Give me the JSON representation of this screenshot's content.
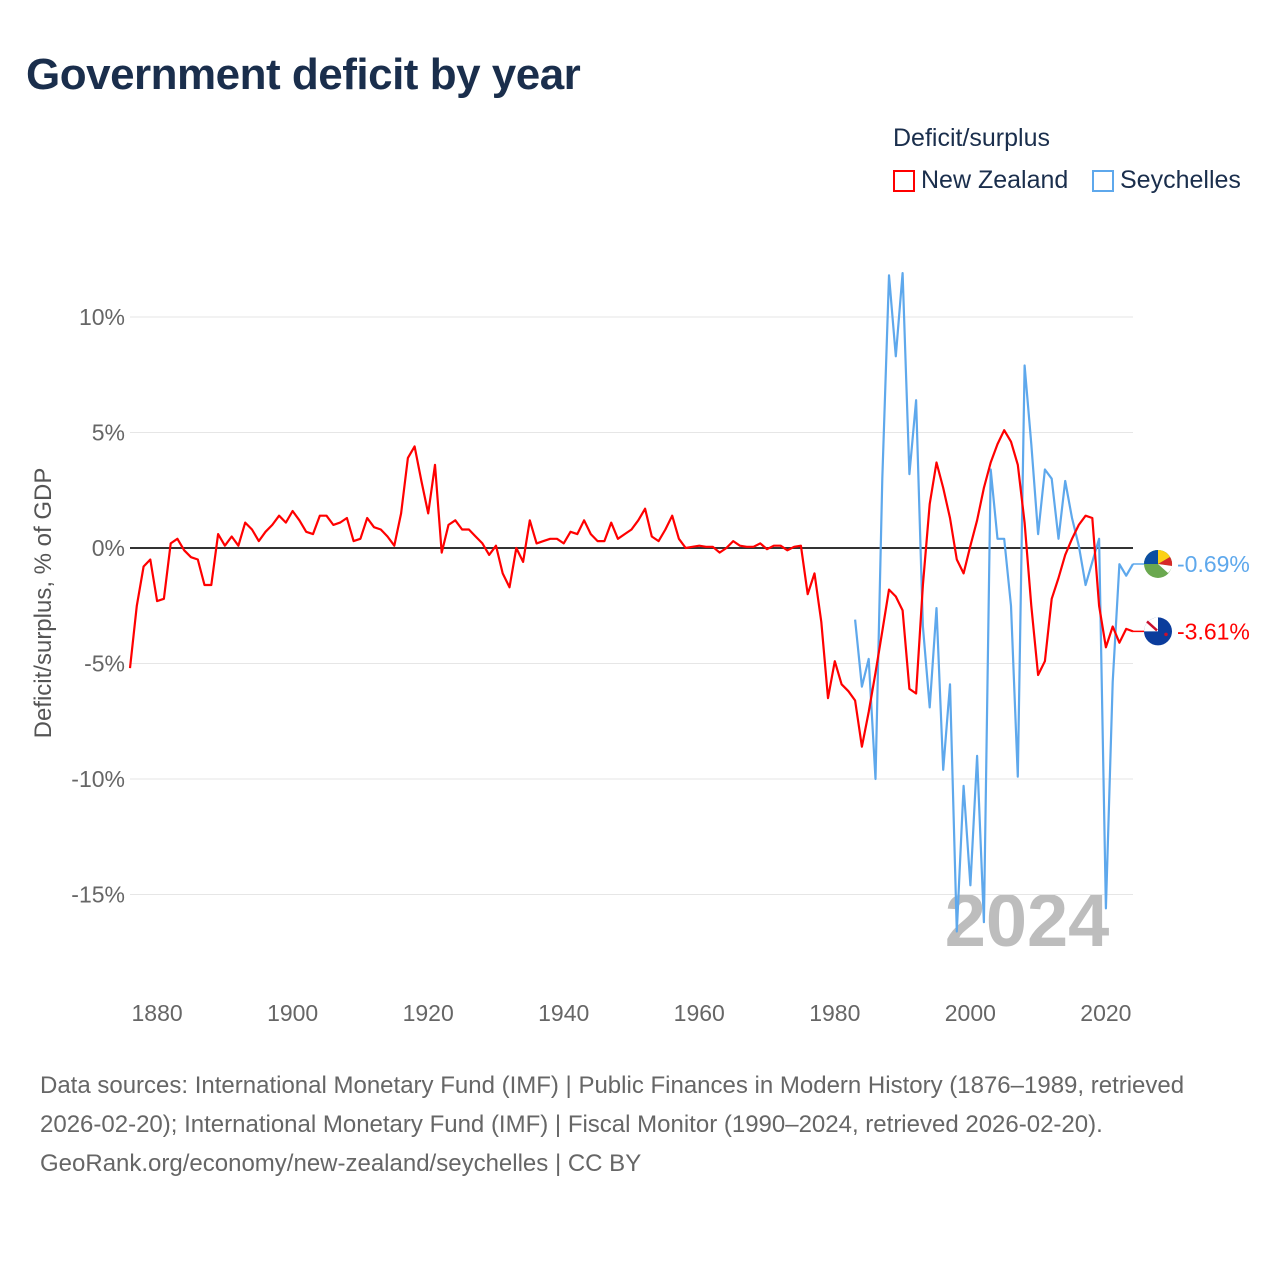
{
  "title": "Government deficit by year",
  "legend": {
    "title": "Deficit/surplus",
    "items": [
      {
        "label": "New Zealand",
        "color": "#ff0000"
      },
      {
        "label": "Seychelles",
        "color": "#5ea8ec"
      }
    ]
  },
  "year_label": "2024",
  "footer": {
    "sources": "Data sources: International Monetary Fund (IMF) | Public Finances in Modern History (1876–1989, retrieved 2026-02-20); International Monetary Fund (IMF) | Fiscal Monitor (1990–2024, retrieved 2026-02-20).",
    "credit": "GeoRank.org/economy/new-zealand/seychelles | CC BY"
  },
  "chart_data": {
    "type": "line",
    "title": "Government deficit by year",
    "xlabel": "",
    "ylabel": "Deficit/surplus, % of GDP",
    "xlim": [
      1876,
      2024
    ],
    "ylim": [
      -18,
      13
    ],
    "x_ticks": [
      1880,
      1900,
      1920,
      1940,
      1960,
      1980,
      2000,
      2020
    ],
    "y_ticks": [
      {
        "v": 10,
        "label": "10%"
      },
      {
        "v": 5,
        "label": "5%"
      },
      {
        "v": 0,
        "label": "0%"
      },
      {
        "v": -5,
        "label": "-5%"
      },
      {
        "v": -10,
        "label": "-10%"
      },
      {
        "v": -15,
        "label": "-15%"
      }
    ],
    "grid": true,
    "legend_position": "top-right",
    "series": [
      {
        "name": "New Zealand",
        "color": "#ff0000",
        "start_year": 1876,
        "end_label": "-3.61%",
        "values": [
          -5.2,
          -2.5,
          -0.8,
          -0.5,
          -2.3,
          -2.2,
          0.2,
          0.4,
          -0.1,
          -0.4,
          -0.5,
          -1.6,
          -1.6,
          0.6,
          0.1,
          0.5,
          0.1,
          1.1,
          0.8,
          0.3,
          0.7,
          1.0,
          1.4,
          1.1,
          1.6,
          1.2,
          0.7,
          0.6,
          1.4,
          1.4,
          1.0,
          1.1,
          1.3,
          0.3,
          0.4,
          1.3,
          0.9,
          0.8,
          0.5,
          0.1,
          1.5,
          3.9,
          4.4,
          2.9,
          1.5,
          3.6,
          -0.2,
          1.0,
          1.2,
          0.8,
          0.8,
          0.5,
          0.2,
          -0.3,
          0.1,
          -1.1,
          -1.7,
          0.0,
          -0.6,
          1.2,
          0.2,
          0.3,
          0.4,
          0.4,
          0.2,
          0.7,
          0.6,
          1.2,
          0.6,
          0.3,
          0.3,
          1.1,
          0.4,
          0.6,
          0.8,
          1.2,
          1.7,
          0.5,
          0.3,
          0.8,
          1.4,
          0.4,
          0.0,
          0.05,
          0.1,
          0.05,
          0.05,
          -0.2,
          0.0,
          0.3,
          0.1,
          0.05,
          0.05,
          0.2,
          -0.05,
          0.1,
          0.1,
          -0.1,
          0.05,
          0.1,
          -2.0,
          -1.1,
          -3.2,
          -6.5,
          -4.9,
          -5.9,
          -6.2,
          -6.6,
          -8.6,
          -7.1,
          -5.4,
          -3.6,
          -1.8,
          -2.1,
          -2.7,
          -6.1,
          -6.3,
          -1.6,
          1.9,
          3.7,
          2.6,
          1.3,
          -0.5,
          -1.1,
          0.1,
          1.2,
          2.6,
          3.7,
          4.5,
          5.1,
          4.6,
          3.6,
          1.1,
          -2.5,
          -5.5,
          -4.9,
          -2.2,
          -1.3,
          -0.3,
          0.4,
          1.0,
          1.4,
          1.3,
          -2.5,
          -4.3,
          -3.4,
          -4.1,
          -3.5,
          -3.61
        ]
      },
      {
        "name": "Seychelles",
        "color": "#5ea8ec",
        "start_year": 1983,
        "end_label": "-0.69%",
        "values": [
          -3.1,
          -6.0,
          -4.8,
          -10.0,
          3.0,
          11.8,
          8.3,
          11.9,
          3.2,
          6.4,
          -3.4,
          -6.9,
          -2.6,
          -9.6,
          -5.9,
          -16.6,
          -10.3,
          -14.6,
          -9.0,
          -16.2,
          3.4,
          0.4,
          0.4,
          -2.5,
          -9.9,
          7.9,
          4.5,
          0.6,
          3.4,
          3.0,
          0.4,
          2.9,
          1.3,
          0.1,
          -1.6,
          -0.6,
          0.4,
          -15.6,
          -5.8,
          -0.7,
          -1.2,
          -0.69
        ]
      }
    ]
  }
}
